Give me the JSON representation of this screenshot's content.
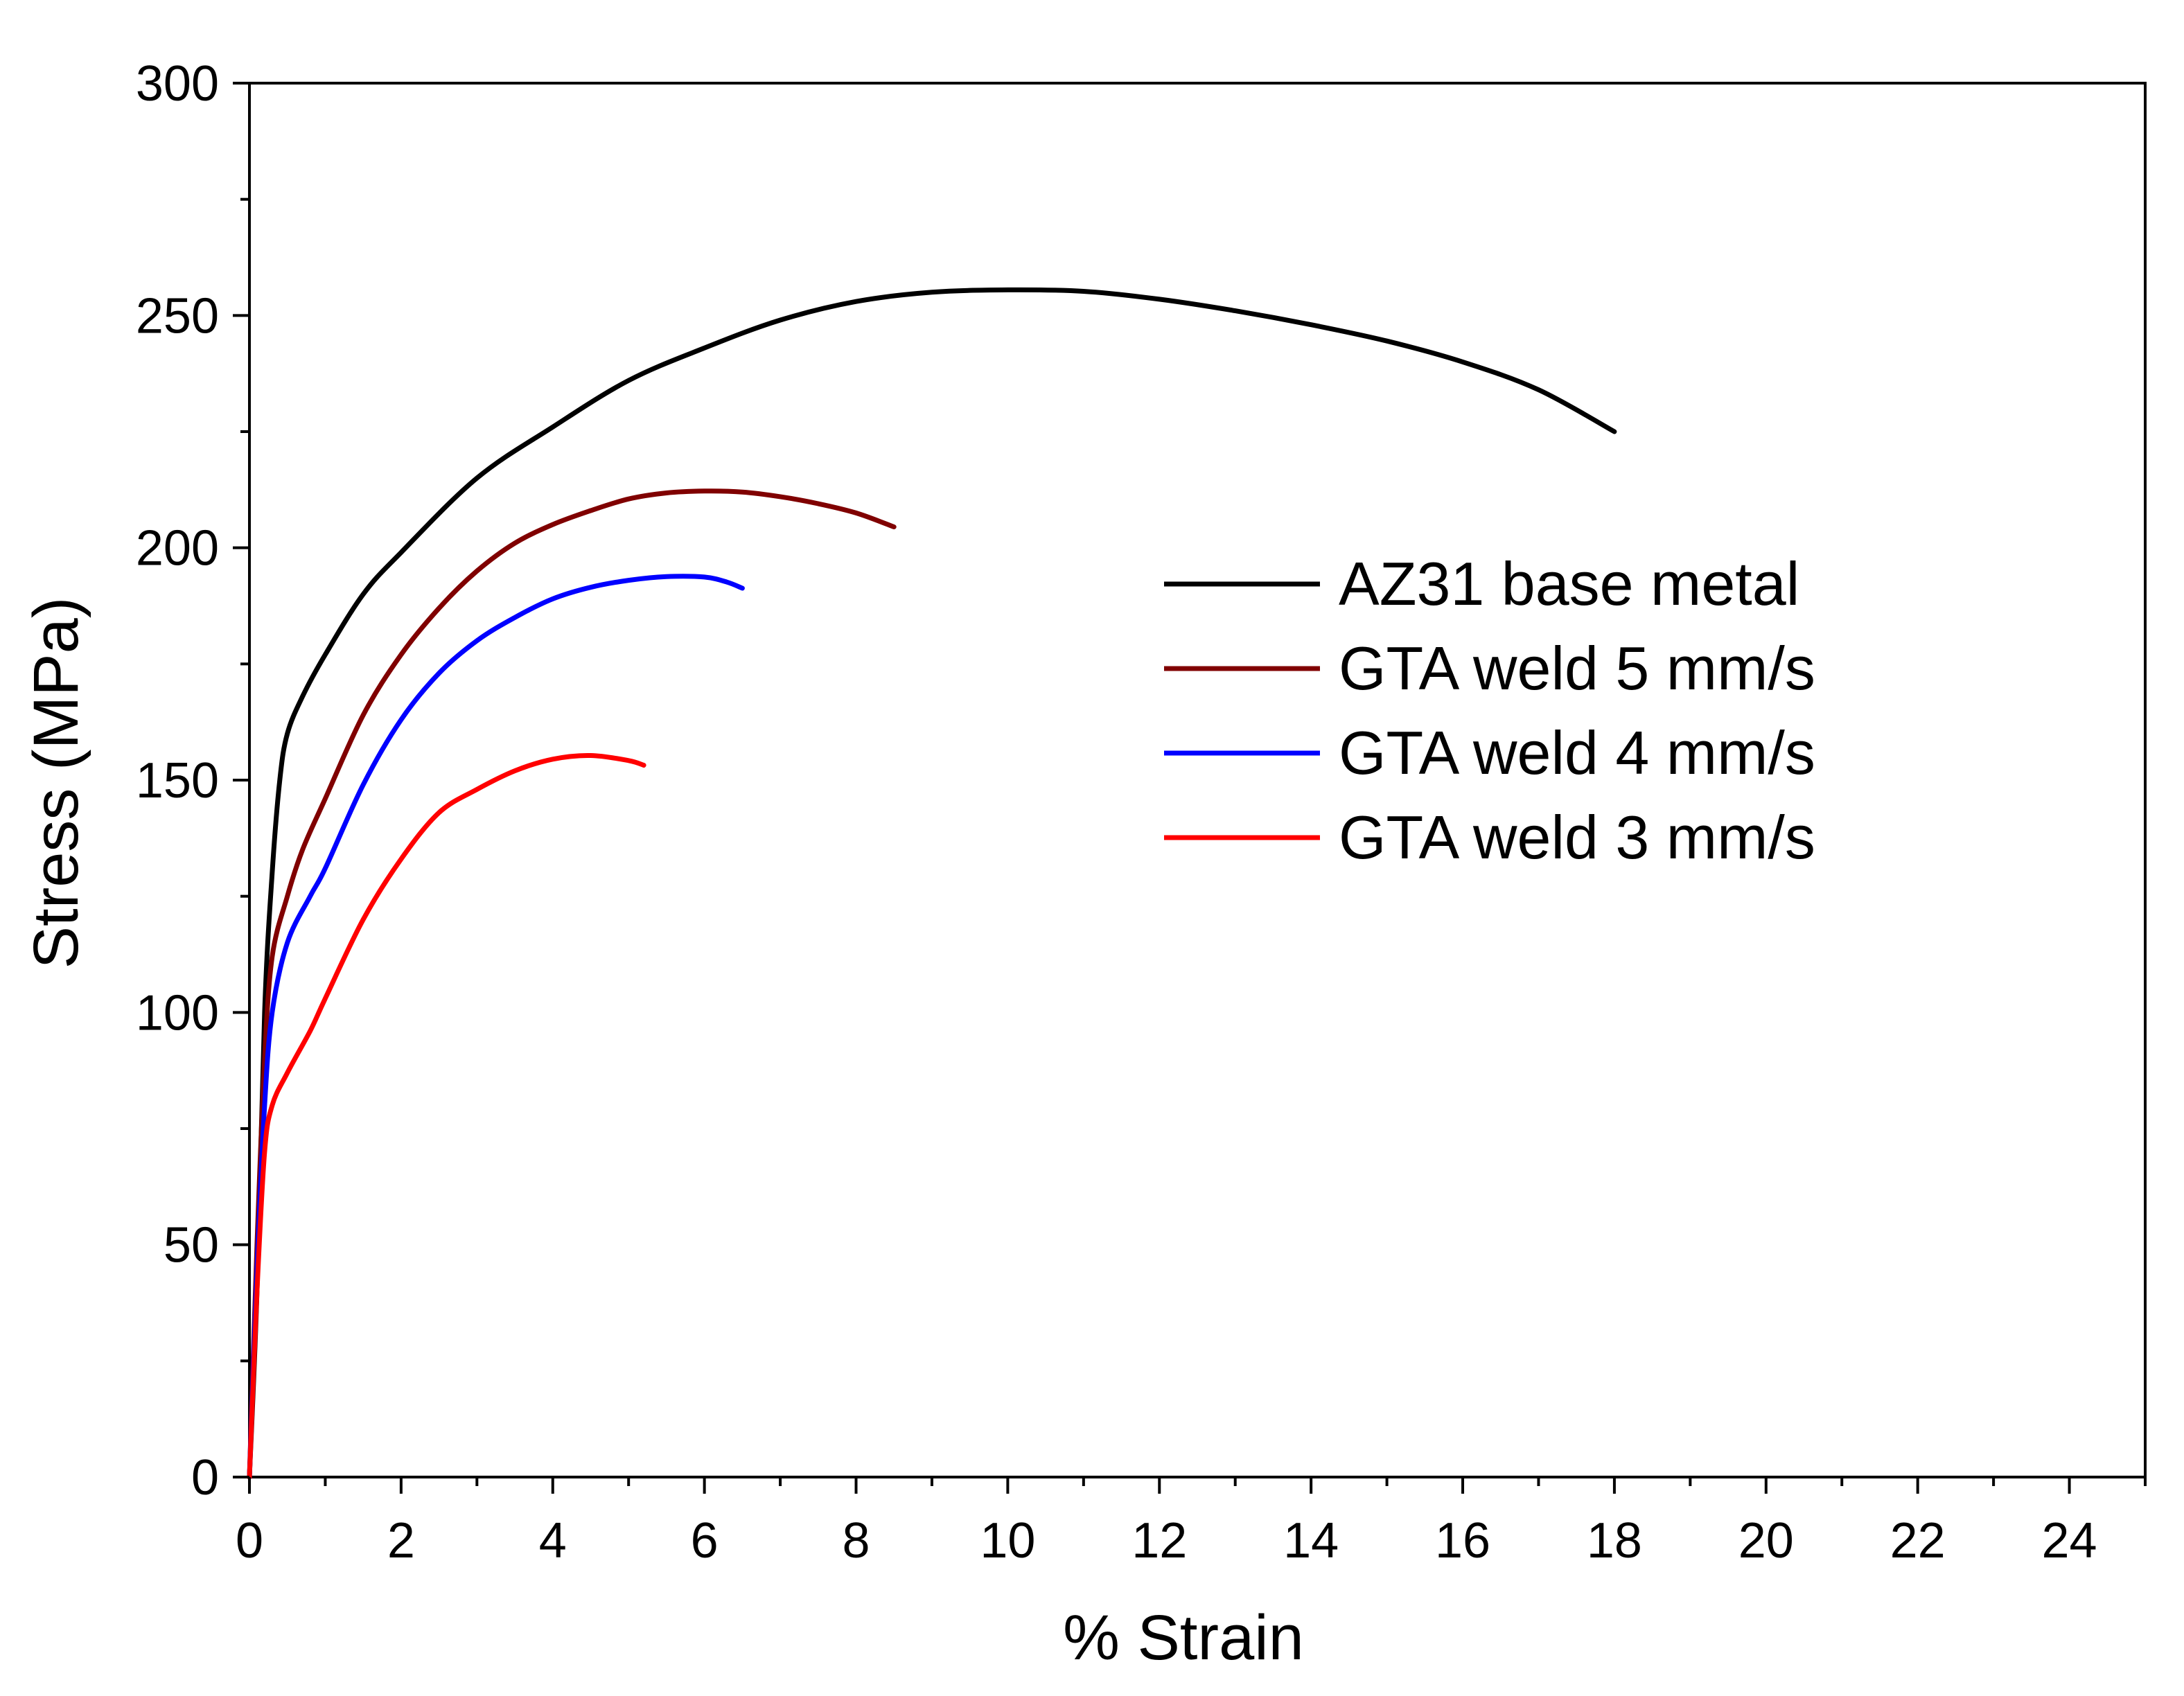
{
  "chart_data": {
    "type": "line",
    "title": "",
    "xlabel": "% Strain",
    "ylabel": "Stress (MPa)",
    "xlim": [
      0,
      25
    ],
    "ylim": [
      0,
      300
    ],
    "x_ticks": [
      0,
      2,
      4,
      6,
      8,
      10,
      12,
      14,
      16,
      18,
      20,
      22,
      24
    ],
    "y_ticks": [
      0,
      50,
      100,
      150,
      200,
      250,
      300
    ],
    "grid": false,
    "legend_position": "center-right",
    "series": [
      {
        "name": "AZ31 base metal",
        "color": "#000000",
        "points": [
          [
            0,
            0
          ],
          [
            0.1,
            40
          ],
          [
            0.2,
            100
          ],
          [
            0.3,
            130
          ],
          [
            0.4,
            150
          ],
          [
            0.5,
            160
          ],
          [
            0.7,
            168
          ],
          [
            1.0,
            177
          ],
          [
            1.5,
            190
          ],
          [
            2,
            199
          ],
          [
            3,
            215
          ],
          [
            4,
            226
          ],
          [
            5,
            236
          ],
          [
            6,
            243
          ],
          [
            7,
            249
          ],
          [
            8,
            253
          ],
          [
            9,
            255
          ],
          [
            10,
            255.5
          ],
          [
            11,
            255.2
          ],
          [
            12,
            253.5
          ],
          [
            13,
            251
          ],
          [
            14,
            248
          ],
          [
            15,
            244.5
          ],
          [
            16,
            240
          ],
          [
            17,
            234
          ],
          [
            18,
            225
          ]
        ]
      },
      {
        "name": "GTA weld 5 mm/s",
        "color": "#800000",
        "points": [
          [
            0,
            0
          ],
          [
            0.1,
            50
          ],
          [
            0.2,
            90
          ],
          [
            0.3,
            112
          ],
          [
            0.5,
            125
          ],
          [
            0.7,
            135
          ],
          [
            1.0,
            146
          ],
          [
            1.5,
            164
          ],
          [
            2,
            177
          ],
          [
            2.5,
            187
          ],
          [
            3,
            195
          ],
          [
            3.5,
            201
          ],
          [
            4,
            205
          ],
          [
            4.5,
            208
          ],
          [
            5,
            210.5
          ],
          [
            5.5,
            211.8
          ],
          [
            6,
            212.2
          ],
          [
            6.5,
            212
          ],
          [
            7,
            211
          ],
          [
            7.5,
            209.5
          ],
          [
            8,
            207.5
          ],
          [
            8.5,
            204.5
          ]
        ]
      },
      {
        "name": "GTA weld 4 mm/s",
        "color": "#0000ff",
        "points": [
          [
            0,
            0
          ],
          [
            0.1,
            45
          ],
          [
            0.2,
            80
          ],
          [
            0.3,
            100
          ],
          [
            0.5,
            115
          ],
          [
            0.8,
            125
          ],
          [
            1.0,
            131
          ],
          [
            1.5,
            149
          ],
          [
            2,
            163
          ],
          [
            2.5,
            173
          ],
          [
            3,
            180
          ],
          [
            3.5,
            185
          ],
          [
            4,
            189
          ],
          [
            4.5,
            191.5
          ],
          [
            5,
            193
          ],
          [
            5.5,
            193.8
          ],
          [
            6,
            193.7
          ],
          [
            6.3,
            192.6
          ],
          [
            6.5,
            191.3
          ]
        ]
      },
      {
        "name": "GTA weld 3 mm/s",
        "color": "#ff0000",
        "points": [
          [
            0,
            0
          ],
          [
            0.1,
            40
          ],
          [
            0.2,
            70
          ],
          [
            0.3,
            80
          ],
          [
            0.5,
            87
          ],
          [
            0.8,
            96
          ],
          [
            1.0,
            103
          ],
          [
            1.5,
            120
          ],
          [
            2,
            133
          ],
          [
            2.5,
            143
          ],
          [
            3,
            148
          ],
          [
            3.5,
            152
          ],
          [
            4,
            154.5
          ],
          [
            4.5,
            155.3
          ],
          [
            5,
            154.2
          ],
          [
            5.2,
            153.2
          ]
        ]
      }
    ]
  }
}
